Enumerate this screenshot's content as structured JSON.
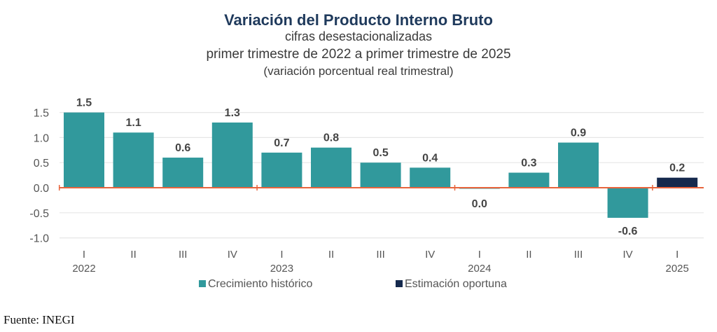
{
  "chart_data": {
    "type": "bar",
    "title": "Variación del Producto Interno Bruto",
    "subtitles": [
      "cifras desestacionalizadas",
      "primer trimestre de 2022 a primer trimestre de 2025",
      "(variación porcentual real trimestral)"
    ],
    "categories": [
      "I",
      "II",
      "III",
      "IV",
      "I",
      "II",
      "III",
      "IV",
      "I",
      "II",
      "III",
      "IV",
      "I"
    ],
    "years": [
      {
        "label": "2022",
        "index": 0
      },
      {
        "label": "2023",
        "index": 4
      },
      {
        "label": "2024",
        "index": 8
      },
      {
        "label": "2025",
        "index": 12
      }
    ],
    "values": [
      1.5,
      1.1,
      0.6,
      1.3,
      0.7,
      0.8,
      0.5,
      0.4,
      -0.02,
      0.3,
      0.9,
      -0.6,
      0.2
    ],
    "data_labels": [
      "1.5",
      "1.1",
      "0.6",
      "1.3",
      "0.7",
      "0.8",
      "0.5",
      "0.4",
      "0.0",
      "0.3",
      "0.9",
      "-0.6",
      "0.2"
    ],
    "series_index": [
      0,
      0,
      0,
      0,
      0,
      0,
      0,
      0,
      0,
      0,
      0,
      0,
      1
    ],
    "series": [
      {
        "name": "Crecimiento  histórico",
        "color": "#31999c"
      },
      {
        "name": "Estimación oportuna",
        "color": "#15294d"
      }
    ],
    "yticks": [
      "1.5",
      "1.0",
      "0.5",
      "0.0",
      "-0.5",
      "-1.0"
    ],
    "ylim": [
      -1.0,
      1.5
    ],
    "grid": true,
    "zero_line_color": "#e8643c",
    "legend_position": "bottom"
  },
  "source": "Fuente: INEGI"
}
